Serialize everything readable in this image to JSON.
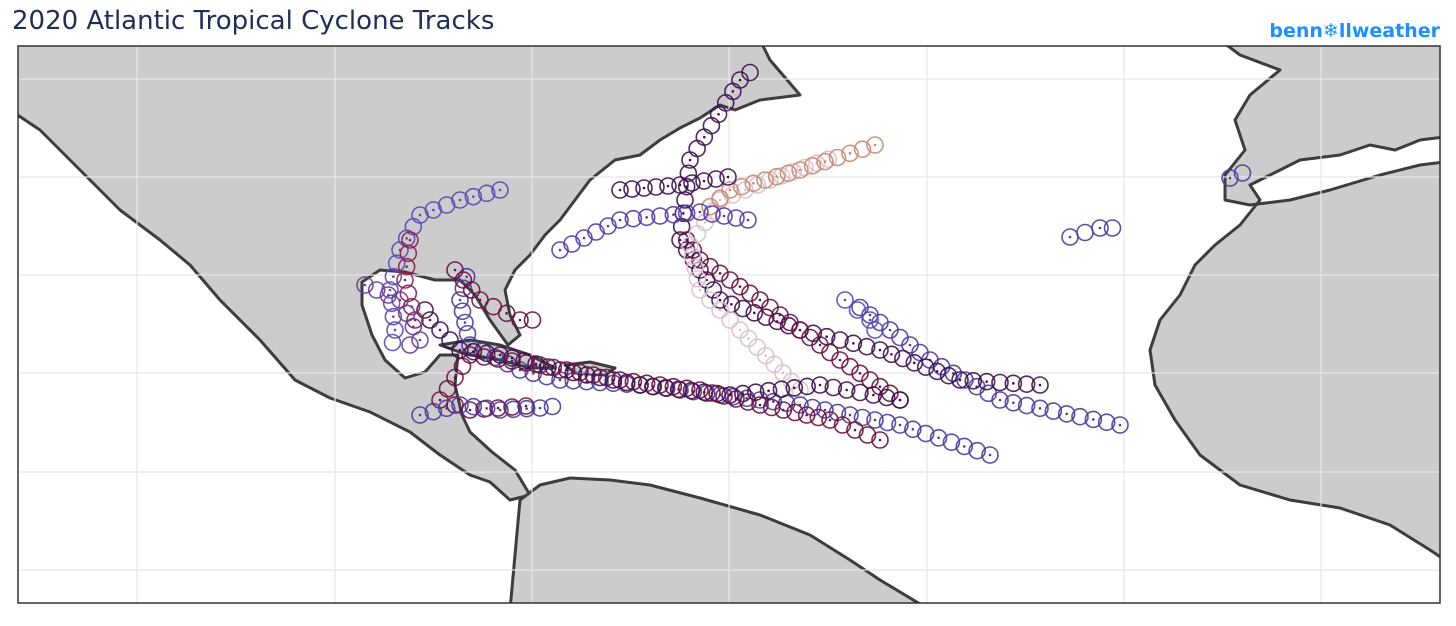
{
  "header": {
    "title": "2020 Atlantic Tropical Cyclone Tracks",
    "brand": "benn❄llweather"
  }
}
